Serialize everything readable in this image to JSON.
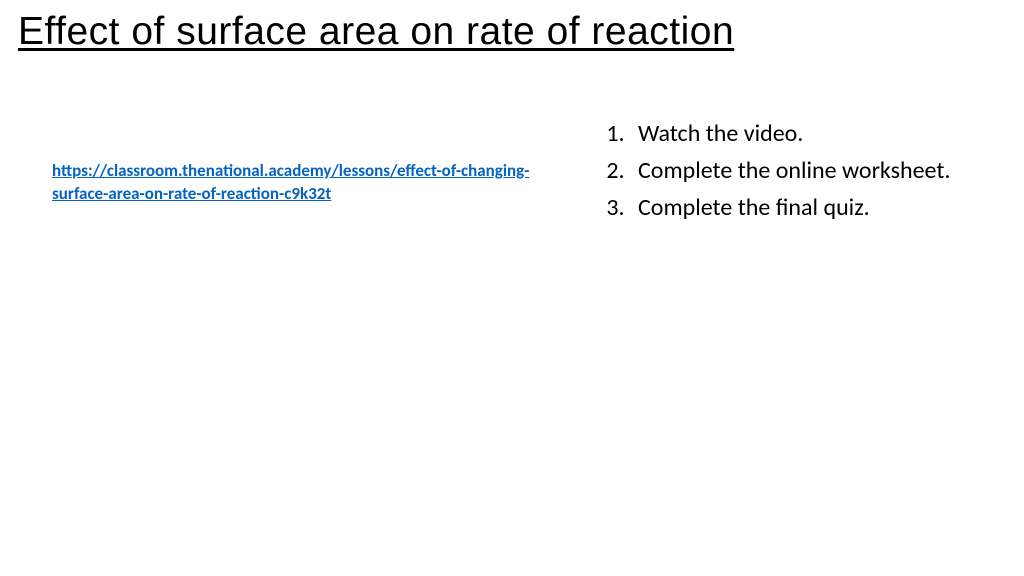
{
  "title": "Effect of surface area on rate of reaction",
  "link": {
    "url": "https://classroom.thenational.academy/lessons/effect-of-changing-surface-area-on-rate-of-reaction-c9k32t",
    "text": "https://classroom.thenational.academy/lessons/effect-of-changing-surface-area-on-rate-of-reaction-c9k32t",
    "color": "#0563c1"
  },
  "instructions": {
    "items": [
      "Watch the video.",
      "Complete the online worksheet.",
      "Complete the final quiz."
    ]
  },
  "colors": {
    "background": "#ffffff",
    "text": "#000000",
    "link": "#0563c1"
  },
  "typography": {
    "title_font": "Comic Sans MS",
    "title_size_pt": 30,
    "body_font": "Calibri",
    "body_size_pt": 18,
    "link_size_pt": 13
  }
}
